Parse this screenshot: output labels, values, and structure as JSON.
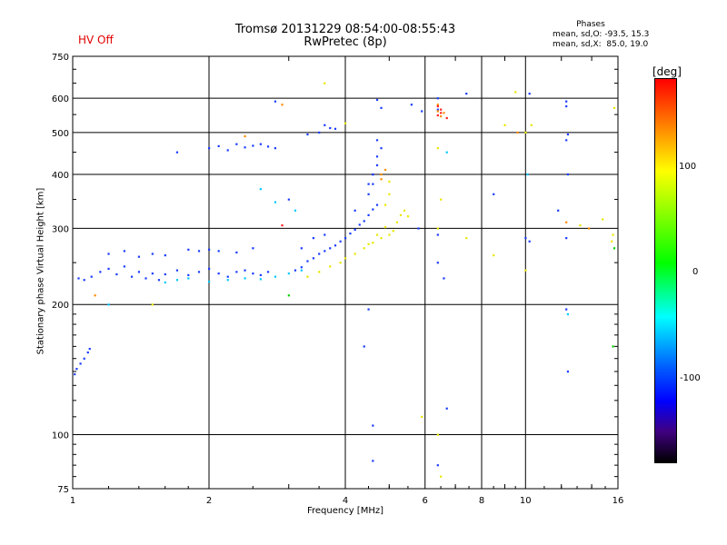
{
  "header": {
    "hv_status": "HV Off",
    "title_line1": "Tromsø 20131229 08:54:00-08:55:43",
    "title_line2": "RwPretec (8p)",
    "phases_title": "Phases",
    "phases_o": "mean, sd,O: -93.5, 15.3",
    "phases_x": "mean, sd,X:  85.0, 19.0"
  },
  "colorbar": {
    "label": "[deg]",
    "ticks": [
      "100",
      "0",
      "-100"
    ],
    "stops": [
      "#ff0000",
      "#ff8000",
      "#ffff00",
      "#00ff00",
      "#00ffff",
      "#0000ff",
      "#400080",
      "#000000"
    ]
  },
  "chart_data": {
    "type": "scatter",
    "title": "Tromsø 20131229 08:54:00-08:55:43",
    "subtitle": "RwPretec (8p)",
    "xlabel": "Frequency [MHz]",
    "ylabel": "Stationary phase Virtual Height [km]",
    "x_scale": "log",
    "y_scale": "log",
    "xlim": [
      1,
      16
    ],
    "ylim": [
      75,
      750
    ],
    "x_ticks": [
      "1",
      "2",
      "4",
      "6",
      "8",
      "10",
      "16"
    ],
    "y_ticks": [
      "75",
      "100",
      "200",
      "300",
      "400",
      "500",
      "600",
      "750"
    ],
    "grid": true,
    "series": [
      {
        "color": "#1a3cff",
        "points": [
          [
            1.03,
            230
          ],
          [
            1.06,
            228
          ],
          [
            1.1,
            232
          ],
          [
            1.15,
            238
          ],
          [
            1.2,
            242
          ],
          [
            1.25,
            235
          ],
          [
            1.3,
            245
          ],
          [
            1.35,
            232
          ],
          [
            1.4,
            238
          ],
          [
            1.45,
            230
          ],
          [
            1.5,
            236
          ],
          [
            1.55,
            228
          ],
          [
            1.6,
            235
          ],
          [
            1.7,
            240
          ],
          [
            1.8,
            234
          ],
          [
            1.9,
            238
          ],
          [
            2.0,
            242
          ],
          [
            2.1,
            236
          ],
          [
            2.2,
            232
          ],
          [
            2.3,
            238
          ],
          [
            2.4,
            240
          ],
          [
            2.5,
            236
          ],
          [
            2.6,
            234
          ],
          [
            2.7,
            238
          ],
          [
            1.2,
            262
          ],
          [
            1.3,
            266
          ],
          [
            1.4,
            258
          ],
          [
            1.5,
            262
          ],
          [
            1.6,
            260
          ],
          [
            1.8,
            268
          ],
          [
            1.9,
            266
          ],
          [
            2.0,
            268
          ],
          [
            2.1,
            266
          ],
          [
            2.3,
            264
          ],
          [
            2.5,
            270
          ],
          [
            3.1,
            240
          ],
          [
            3.2,
            244
          ],
          [
            3.3,
            252
          ],
          [
            3.4,
            256
          ],
          [
            3.5,
            262
          ],
          [
            3.6,
            266
          ],
          [
            3.7,
            270
          ],
          [
            3.8,
            274
          ],
          [
            3.9,
            280
          ],
          [
            4.0,
            285
          ],
          [
            4.1,
            292
          ],
          [
            4.2,
            298
          ],
          [
            4.3,
            306
          ],
          [
            4.4,
            312
          ],
          [
            4.5,
            322
          ],
          [
            4.6,
            332
          ],
          [
            4.7,
            340
          ],
          [
            3.4,
            285
          ],
          [
            3.6,
            290
          ],
          [
            4.2,
            330
          ],
          [
            4.5,
            360
          ],
          [
            4.6,
            380
          ],
          [
            4.6,
            400
          ],
          [
            4.7,
            420
          ],
          [
            4.7,
            440
          ],
          [
            4.8,
            460
          ],
          [
            4.7,
            480
          ],
          [
            4.6,
            400
          ],
          [
            4.5,
            380
          ],
          [
            2.0,
            460
          ],
          [
            2.1,
            465
          ],
          [
            2.2,
            455
          ],
          [
            2.3,
            470
          ],
          [
            2.4,
            462
          ],
          [
            2.5,
            466
          ],
          [
            2.6,
            470
          ],
          [
            2.7,
            464
          ],
          [
            2.8,
            460
          ],
          [
            1.01,
            138
          ],
          [
            1.02,
            142
          ],
          [
            1.04,
            146
          ],
          [
            1.06,
            150
          ],
          [
            1.08,
            155
          ],
          [
            1.09,
            158
          ],
          [
            3.2,
            270
          ],
          [
            3.0,
            350
          ],
          [
            3.6,
            520
          ],
          [
            3.7,
            512
          ],
          [
            3.5,
            500
          ],
          [
            3.3,
            495
          ],
          [
            3.8,
            510
          ],
          [
            6.4,
            600
          ],
          [
            6.4,
            565
          ],
          [
            7.4,
            615
          ],
          [
            10.2,
            615
          ],
          [
            12.3,
            590
          ],
          [
            12.3,
            575
          ],
          [
            12.4,
            495
          ],
          [
            12.3,
            480
          ],
          [
            12.4,
            400
          ],
          [
            12.3,
            285
          ],
          [
            12.3,
            195
          ],
          [
            12.4,
            140
          ],
          [
            8.5,
            360
          ],
          [
            10.0,
            285
          ],
          [
            10.2,
            280
          ],
          [
            11.8,
            330
          ],
          [
            5.8,
            300
          ],
          [
            6.4,
            290
          ],
          [
            6.4,
            250
          ],
          [
            6.6,
            230
          ],
          [
            4.5,
            195
          ],
          [
            4.4,
            160
          ],
          [
            4.6,
            105
          ],
          [
            4.6,
            87
          ],
          [
            6.4,
            85
          ],
          [
            6.7,
            115
          ],
          [
            5.9,
            560
          ],
          [
            5.6,
            580
          ],
          [
            4.7,
            595
          ],
          [
            4.8,
            570
          ],
          [
            2.8,
            590
          ],
          [
            1.7,
            450
          ]
        ]
      },
      {
        "color": "#00c8ff",
        "points": [
          [
            1.6,
            225
          ],
          [
            1.7,
            228
          ],
          [
            1.8,
            230
          ],
          [
            2.0,
            226
          ],
          [
            2.2,
            228
          ],
          [
            2.4,
            230
          ],
          [
            2.6,
            229
          ],
          [
            2.8,
            232
          ],
          [
            3.0,
            236
          ],
          [
            3.2,
            240
          ],
          [
            2.6,
            370
          ],
          [
            2.8,
            345
          ],
          [
            1.2,
            200
          ],
          [
            12.4,
            190
          ],
          [
            6.7,
            450
          ],
          [
            10.1,
            400
          ],
          [
            3.1,
            330
          ]
        ]
      },
      {
        "color": "#e8e800",
        "points": [
          [
            3.3,
            232
          ],
          [
            3.5,
            238
          ],
          [
            3.7,
            245
          ],
          [
            3.9,
            250
          ],
          [
            4.0,
            256
          ],
          [
            4.2,
            262
          ],
          [
            4.4,
            270
          ],
          [
            4.6,
            278
          ],
          [
            4.8,
            285
          ],
          [
            5.0,
            290
          ],
          [
            5.1,
            296
          ],
          [
            4.9,
            302
          ],
          [
            4.7,
            290
          ],
          [
            4.5,
            276
          ],
          [
            5.2,
            310
          ],
          [
            5.3,
            322
          ],
          [
            5.4,
            330
          ],
          [
            5.5,
            320
          ],
          [
            5.0,
            385
          ],
          [
            5.0,
            360
          ],
          [
            4.9,
            340
          ],
          [
            5.9,
            110
          ],
          [
            6.4,
            300
          ],
          [
            6.4,
            460
          ],
          [
            6.5,
            350
          ],
          [
            7.4,
            285
          ],
          [
            8.5,
            260
          ],
          [
            9.5,
            620
          ],
          [
            9.0,
            520
          ],
          [
            10.3,
            520
          ],
          [
            10.0,
            500
          ],
          [
            15.7,
            570
          ],
          [
            15.6,
            290
          ],
          [
            15.5,
            280
          ],
          [
            14.8,
            315
          ],
          [
            10.0,
            240
          ],
          [
            13.2,
            305
          ],
          [
            1.5,
            200
          ],
          [
            3.6,
            650
          ],
          [
            4.0,
            525
          ],
          [
            6.5,
            80
          ],
          [
            6.4,
            100
          ]
        ]
      },
      {
        "color": "#ff8c00",
        "points": [
          [
            1.12,
            210
          ],
          [
            2.4,
            490
          ],
          [
            2.9,
            580
          ],
          [
            4.8,
            400
          ],
          [
            4.9,
            410
          ],
          [
            4.8,
            390
          ],
          [
            6.4,
            580
          ],
          [
            6.4,
            560
          ],
          [
            6.6,
            555
          ],
          [
            6.5,
            545
          ],
          [
            9.6,
            500
          ],
          [
            12.3,
            310
          ],
          [
            13.8,
            300
          ]
        ]
      },
      {
        "color": "#ff2020",
        "points": [
          [
            6.4,
            575
          ],
          [
            6.5,
            565
          ],
          [
            6.5,
            555
          ],
          [
            6.4,
            548
          ],
          [
            6.7,
            540
          ],
          [
            2.9,
            305
          ]
        ]
      },
      {
        "color": "#00d000",
        "points": [
          [
            15.6,
            160
          ],
          [
            15.7,
            270
          ],
          [
            3.0,
            210
          ]
        ]
      }
    ]
  }
}
